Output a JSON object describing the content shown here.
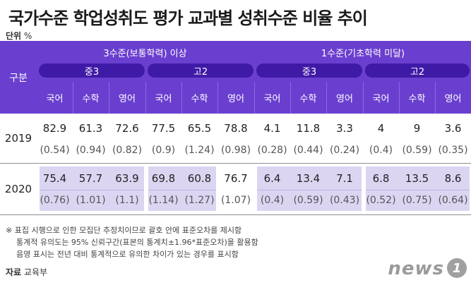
{
  "title": "국가수준 학업성취도 평가 교과별 성취수준 비율 추이",
  "unit_label": "단위",
  "unit_value": "%",
  "header": {
    "gubun": "구분",
    "groups": [
      "3수준(보통학력) 이상",
      "1수준(기초학력 미달)"
    ],
    "grades": [
      "중3",
      "고2",
      "중3",
      "고2"
    ],
    "subjects": [
      "국어",
      "수학",
      "영어",
      "국어",
      "수학",
      "영어",
      "국어",
      "수학",
      "영어",
      "국어",
      "수학",
      "영어"
    ]
  },
  "rows": [
    {
      "year": "2019",
      "values": [
        "82.9",
        "61.3",
        "72.6",
        "77.5",
        "65.5",
        "78.8",
        "4.1",
        "11.8",
        "3.3",
        "4",
        "9",
        "3.6"
      ],
      "se": [
        "(0.54)",
        "(0.94)",
        "(0.82)",
        "(0.9)",
        "(1.24)",
        "(0.98)",
        "(0.28)",
        "(0.44)",
        "(0.24)",
        "(0.4)",
        "(0.59)",
        "(0.35)"
      ]
    },
    {
      "year": "2020",
      "values": [
        "75.4",
        "57.7",
        "63.9",
        "69.8",
        "60.8",
        "76.7",
        "6.4",
        "13.4",
        "7.1",
        "6.8",
        "13.5",
        "8.6"
      ],
      "se": [
        "(0.76)",
        "(1.01)",
        "(1.1)",
        "(1.14)",
        "(1.27)",
        "(1.07)",
        "(0.4)",
        "(0.59)",
        "(0.43)",
        "(0.52)",
        "(0.75)",
        "(0.64)"
      ]
    }
  ],
  "notes": [
    "※ 표집 시행으로 인한 모집단 추정치이므로 괄호 안에 표준오차를 제시함",
    "통계적 유의도는 95% 신뢰구간(표본의 통계치±1.96*표준오차)을 활용함",
    "음영 표시는 전년 대비 통계적으로 유의한 차이가 있는 경우를 표시함"
  ],
  "source_label": "자료",
  "source_value": "교육부",
  "logo_text": "news",
  "logo_mark": "1"
}
